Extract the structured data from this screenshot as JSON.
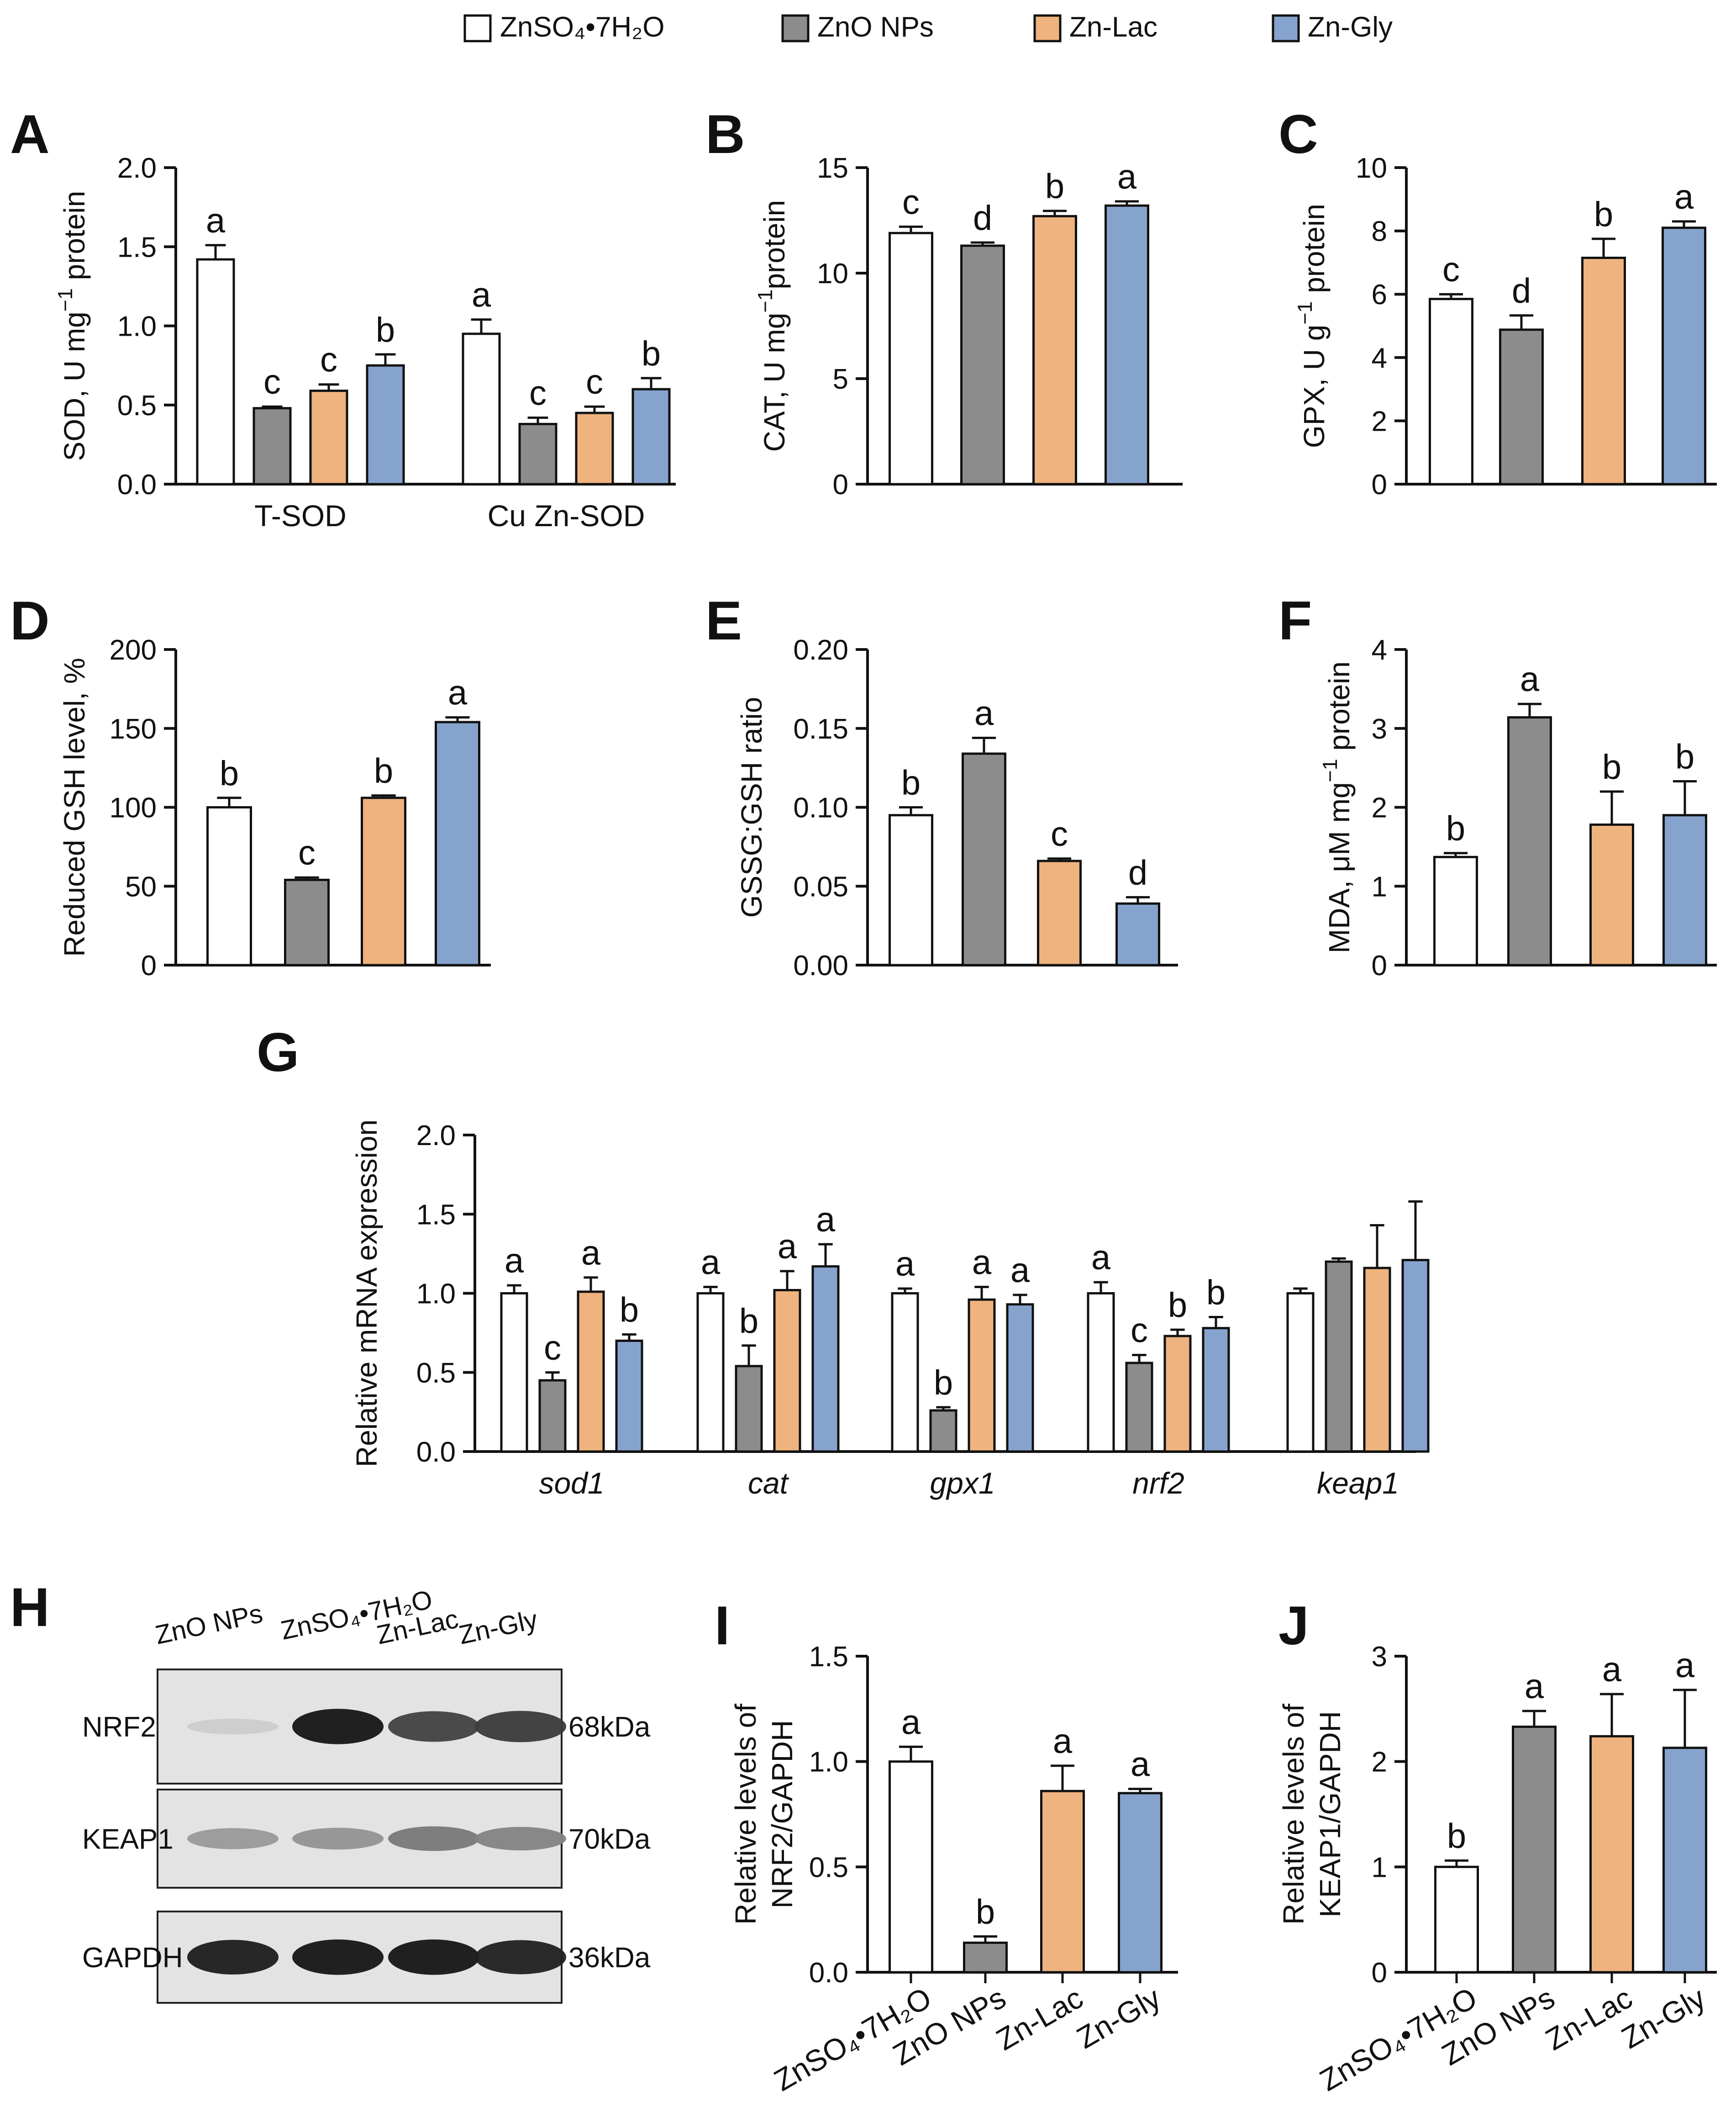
{
  "colors": {
    "ZnSO4": "#ffffff",
    "ZnO": "#8c8c8c",
    "ZnLac": "#eeb37e",
    "ZnGly": "#86a3cd",
    "axis": "#111111"
  },
  "legend": {
    "items": [
      {
        "key": "ZnSO4",
        "label": "ZnSO₄•7H₂O"
      },
      {
        "key": "ZnO",
        "label": "ZnO NPs"
      },
      {
        "key": "ZnLac",
        "label": "Zn-Lac"
      },
      {
        "key": "ZnGly",
        "label": "Zn-Gly"
      }
    ]
  },
  "chart_data": [
    {
      "id": "A",
      "type": "bar",
      "letter": "A",
      "ylabel_main": "SOD, U mg",
      "ylabel_sup": "−1",
      "ylabel_tail": " protein",
      "ylim": [
        0,
        2.0
      ],
      "yticks": [
        "0.0",
        "0.5",
        "1.0",
        "1.5",
        "2.0"
      ],
      "categories": [
        "T-SOD",
        "Cu Zn-SOD"
      ],
      "series": [
        {
          "name": "ZnSO4•7H2O",
          "key": "ZnSO4",
          "values": [
            1.42,
            0.95
          ],
          "errors": [
            0.09,
            0.09
          ],
          "letters": [
            "a",
            "a"
          ]
        },
        {
          "name": "ZnO NPs",
          "key": "ZnO",
          "values": [
            0.48,
            0.38
          ],
          "errors": [
            0.01,
            0.04
          ],
          "letters": [
            "c",
            "c"
          ]
        },
        {
          "name": "Zn-Lac",
          "key": "ZnLac",
          "values": [
            0.59,
            0.45
          ],
          "errors": [
            0.04,
            0.04
          ],
          "letters": [
            "c",
            "c"
          ]
        },
        {
          "name": "Zn-Gly",
          "key": "ZnGly",
          "values": [
            0.75,
            0.6
          ],
          "errors": [
            0.07,
            0.07
          ],
          "letters": [
            "b",
            "b"
          ]
        }
      ]
    },
    {
      "id": "B",
      "type": "bar",
      "letter": "B",
      "ylabel_main": "CAT, U mg",
      "ylabel_sup": "−1",
      "ylabel_tail": "protein",
      "ylim": [
        0,
        15
      ],
      "yticks": [
        "0",
        "5",
        "10",
        "15"
      ],
      "categories": [
        "ZnSO4•7H2O",
        "ZnO NPs",
        "Zn-Lac",
        "Zn-Gly"
      ],
      "values": [
        11.9,
        11.3,
        12.7,
        13.2
      ],
      "errors": [
        0.3,
        0.15,
        0.25,
        0.2
      ],
      "letters": [
        "c",
        "d",
        "b",
        "a"
      ]
    },
    {
      "id": "C",
      "type": "bar",
      "letter": "C",
      "ylabel_main": "GPX, U g",
      "ylabel_sup": "−1",
      "ylabel_tail": " protein",
      "ylim": [
        0,
        10
      ],
      "yticks": [
        "0",
        "2",
        "4",
        "6",
        "8",
        "10"
      ],
      "categories": [
        "ZnSO4•7H2O",
        "ZnO NPs",
        "Zn-Lac",
        "Zn-Gly"
      ],
      "values": [
        5.85,
        4.88,
        7.15,
        8.1
      ],
      "errors": [
        0.15,
        0.45,
        0.6,
        0.2
      ],
      "letters": [
        "c",
        "d",
        "b",
        "a"
      ]
    },
    {
      "id": "D",
      "type": "bar",
      "letter": "D",
      "ylabel_main": "Reduced GSH level, %",
      "ylabel_sup": "",
      "ylabel_tail": "",
      "ylim": [
        0,
        200
      ],
      "yticks": [
        "0",
        "50",
        "100",
        "150",
        "200"
      ],
      "categories": [
        "ZnSO4•7H2O",
        "ZnO NPs",
        "Zn-Lac",
        "Zn-Gly"
      ],
      "values": [
        100,
        54,
        106,
        154
      ],
      "errors": [
        6,
        1.5,
        1.5,
        3
      ],
      "letters": [
        "b",
        "c",
        "b",
        "a"
      ]
    },
    {
      "id": "E",
      "type": "bar",
      "letter": "E",
      "ylabel_main": "GSSG:GSH ratio",
      "ylabel_sup": "",
      "ylabel_tail": "",
      "ylim": [
        0,
        0.2
      ],
      "yticks": [
        "0.00",
        "0.05",
        "0.10",
        "0.15",
        "0.20"
      ],
      "categories": [
        "ZnSO4•7H2O",
        "ZnO NPs",
        "Zn-Lac",
        "Zn-Gly"
      ],
      "values": [
        0.095,
        0.134,
        0.066,
        0.039
      ],
      "errors": [
        0.005,
        0.01,
        0.0015,
        0.004
      ],
      "letters": [
        "b",
        "a",
        "c",
        "d"
      ]
    },
    {
      "id": "F",
      "type": "bar",
      "letter": "F",
      "ylabel_main": "MDA, μM mg",
      "ylabel_sup": "−1",
      "ylabel_tail": " protein",
      "ylim": [
        0,
        4
      ],
      "yticks": [
        "0",
        "1",
        "2",
        "3",
        "4"
      ],
      "categories": [
        "ZnSO4•7H2O",
        "ZnO NPs",
        "Zn-Lac",
        "Zn-Gly"
      ],
      "values": [
        1.37,
        3.14,
        1.78,
        1.9
      ],
      "errors": [
        0.05,
        0.17,
        0.42,
        0.43
      ],
      "letters": [
        "b",
        "a",
        "b",
        "b"
      ]
    },
    {
      "id": "G",
      "type": "bar",
      "letter": "G",
      "ylabel_main": "Relative mRNA expression",
      "ylabel_sup": "",
      "ylabel_tail": "",
      "ylim": [
        0,
        2.0
      ],
      "yticks": [
        "0.0",
        "0.5",
        "1.0",
        "1.5",
        "2.0"
      ],
      "categories": [
        "sod1",
        "cat",
        "gpx1",
        "nrf2",
        "keap1"
      ],
      "series": [
        {
          "name": "ZnSO4•7H2O",
          "key": "ZnSO4",
          "values": [
            1.0,
            1.0,
            1.0,
            1.0,
            1.0
          ],
          "errors": [
            0.05,
            0.04,
            0.03,
            0.07,
            0.03
          ],
          "letters": [
            "a",
            "a",
            "a",
            "a",
            ""
          ]
        },
        {
          "name": "ZnO NPs",
          "key": "ZnO",
          "values": [
            0.45,
            0.54,
            0.26,
            0.56,
            1.2
          ],
          "errors": [
            0.05,
            0.13,
            0.02,
            0.05,
            0.02
          ],
          "letters": [
            "c",
            "b",
            "b",
            "c",
            ""
          ]
        },
        {
          "name": "Zn-Lac",
          "key": "ZnLac",
          "values": [
            1.01,
            1.02,
            0.96,
            0.73,
            1.16
          ],
          "errors": [
            0.09,
            0.12,
            0.08,
            0.04,
            0.27
          ],
          "letters": [
            "a",
            "a",
            "a",
            "b",
            ""
          ]
        },
        {
          "name": "Zn-Gly",
          "key": "ZnGly",
          "values": [
            0.7,
            1.17,
            0.93,
            0.78,
            1.21
          ],
          "errors": [
            0.04,
            0.14,
            0.06,
            0.07,
            0.37
          ],
          "letters": [
            "b",
            "a",
            "a",
            "b",
            ""
          ]
        }
      ]
    },
    {
      "id": "I",
      "type": "bar",
      "letter": "I",
      "ylabel_main": "Relative levels of",
      "ylabel_line2": "NRF2/GAPDH",
      "ylabel_sup": "",
      "ylabel_tail": "",
      "ylim": [
        0,
        1.5
      ],
      "yticks": [
        "0.0",
        "0.5",
        "1.0",
        "1.5"
      ],
      "categories": [
        "ZnSO4•7H2O",
        "ZnO NPs",
        "Zn-Lac",
        "Zn-Gly"
      ],
      "values": [
        1.0,
        0.14,
        0.86,
        0.85
      ],
      "errors": [
        0.07,
        0.03,
        0.12,
        0.02
      ],
      "letters": [
        "a",
        "b",
        "a",
        "a"
      ]
    },
    {
      "id": "J",
      "type": "bar",
      "letter": "J",
      "ylabel_main": "Relative levels of",
      "ylabel_line2": "KEAP1/GAPDH",
      "ylabel_sup": "",
      "ylabel_tail": "",
      "ylim": [
        0,
        3
      ],
      "yticks": [
        "0",
        "1",
        "2",
        "3"
      ],
      "categories": [
        "ZnSO4•7H2O",
        "ZnO NPs",
        "Zn-Lac",
        "Zn-Gly"
      ],
      "values": [
        1.0,
        2.33,
        2.24,
        2.13
      ],
      "errors": [
        0.06,
        0.15,
        0.4,
        0.55
      ],
      "letters": [
        "b",
        "a",
        "a",
        "a"
      ]
    }
  ],
  "blot": {
    "letter": "H",
    "lanes": [
      "ZnO NPs",
      "ZnSO₄•7H₂O",
      "Zn-Lac",
      "Zn-Gly"
    ],
    "rows": [
      {
        "label": "NRF2",
        "kda": "68kDa",
        "intensities": [
          0.12,
          0.95,
          0.75,
          0.78
        ]
      },
      {
        "label": "KEAP1",
        "kda": "70kDa",
        "intensities": [
          0.35,
          0.38,
          0.5,
          0.45
        ]
      },
      {
        "label": "GAPDH",
        "kda": "36kDa",
        "intensities": [
          0.92,
          0.95,
          0.95,
          0.9
        ]
      }
    ]
  }
}
